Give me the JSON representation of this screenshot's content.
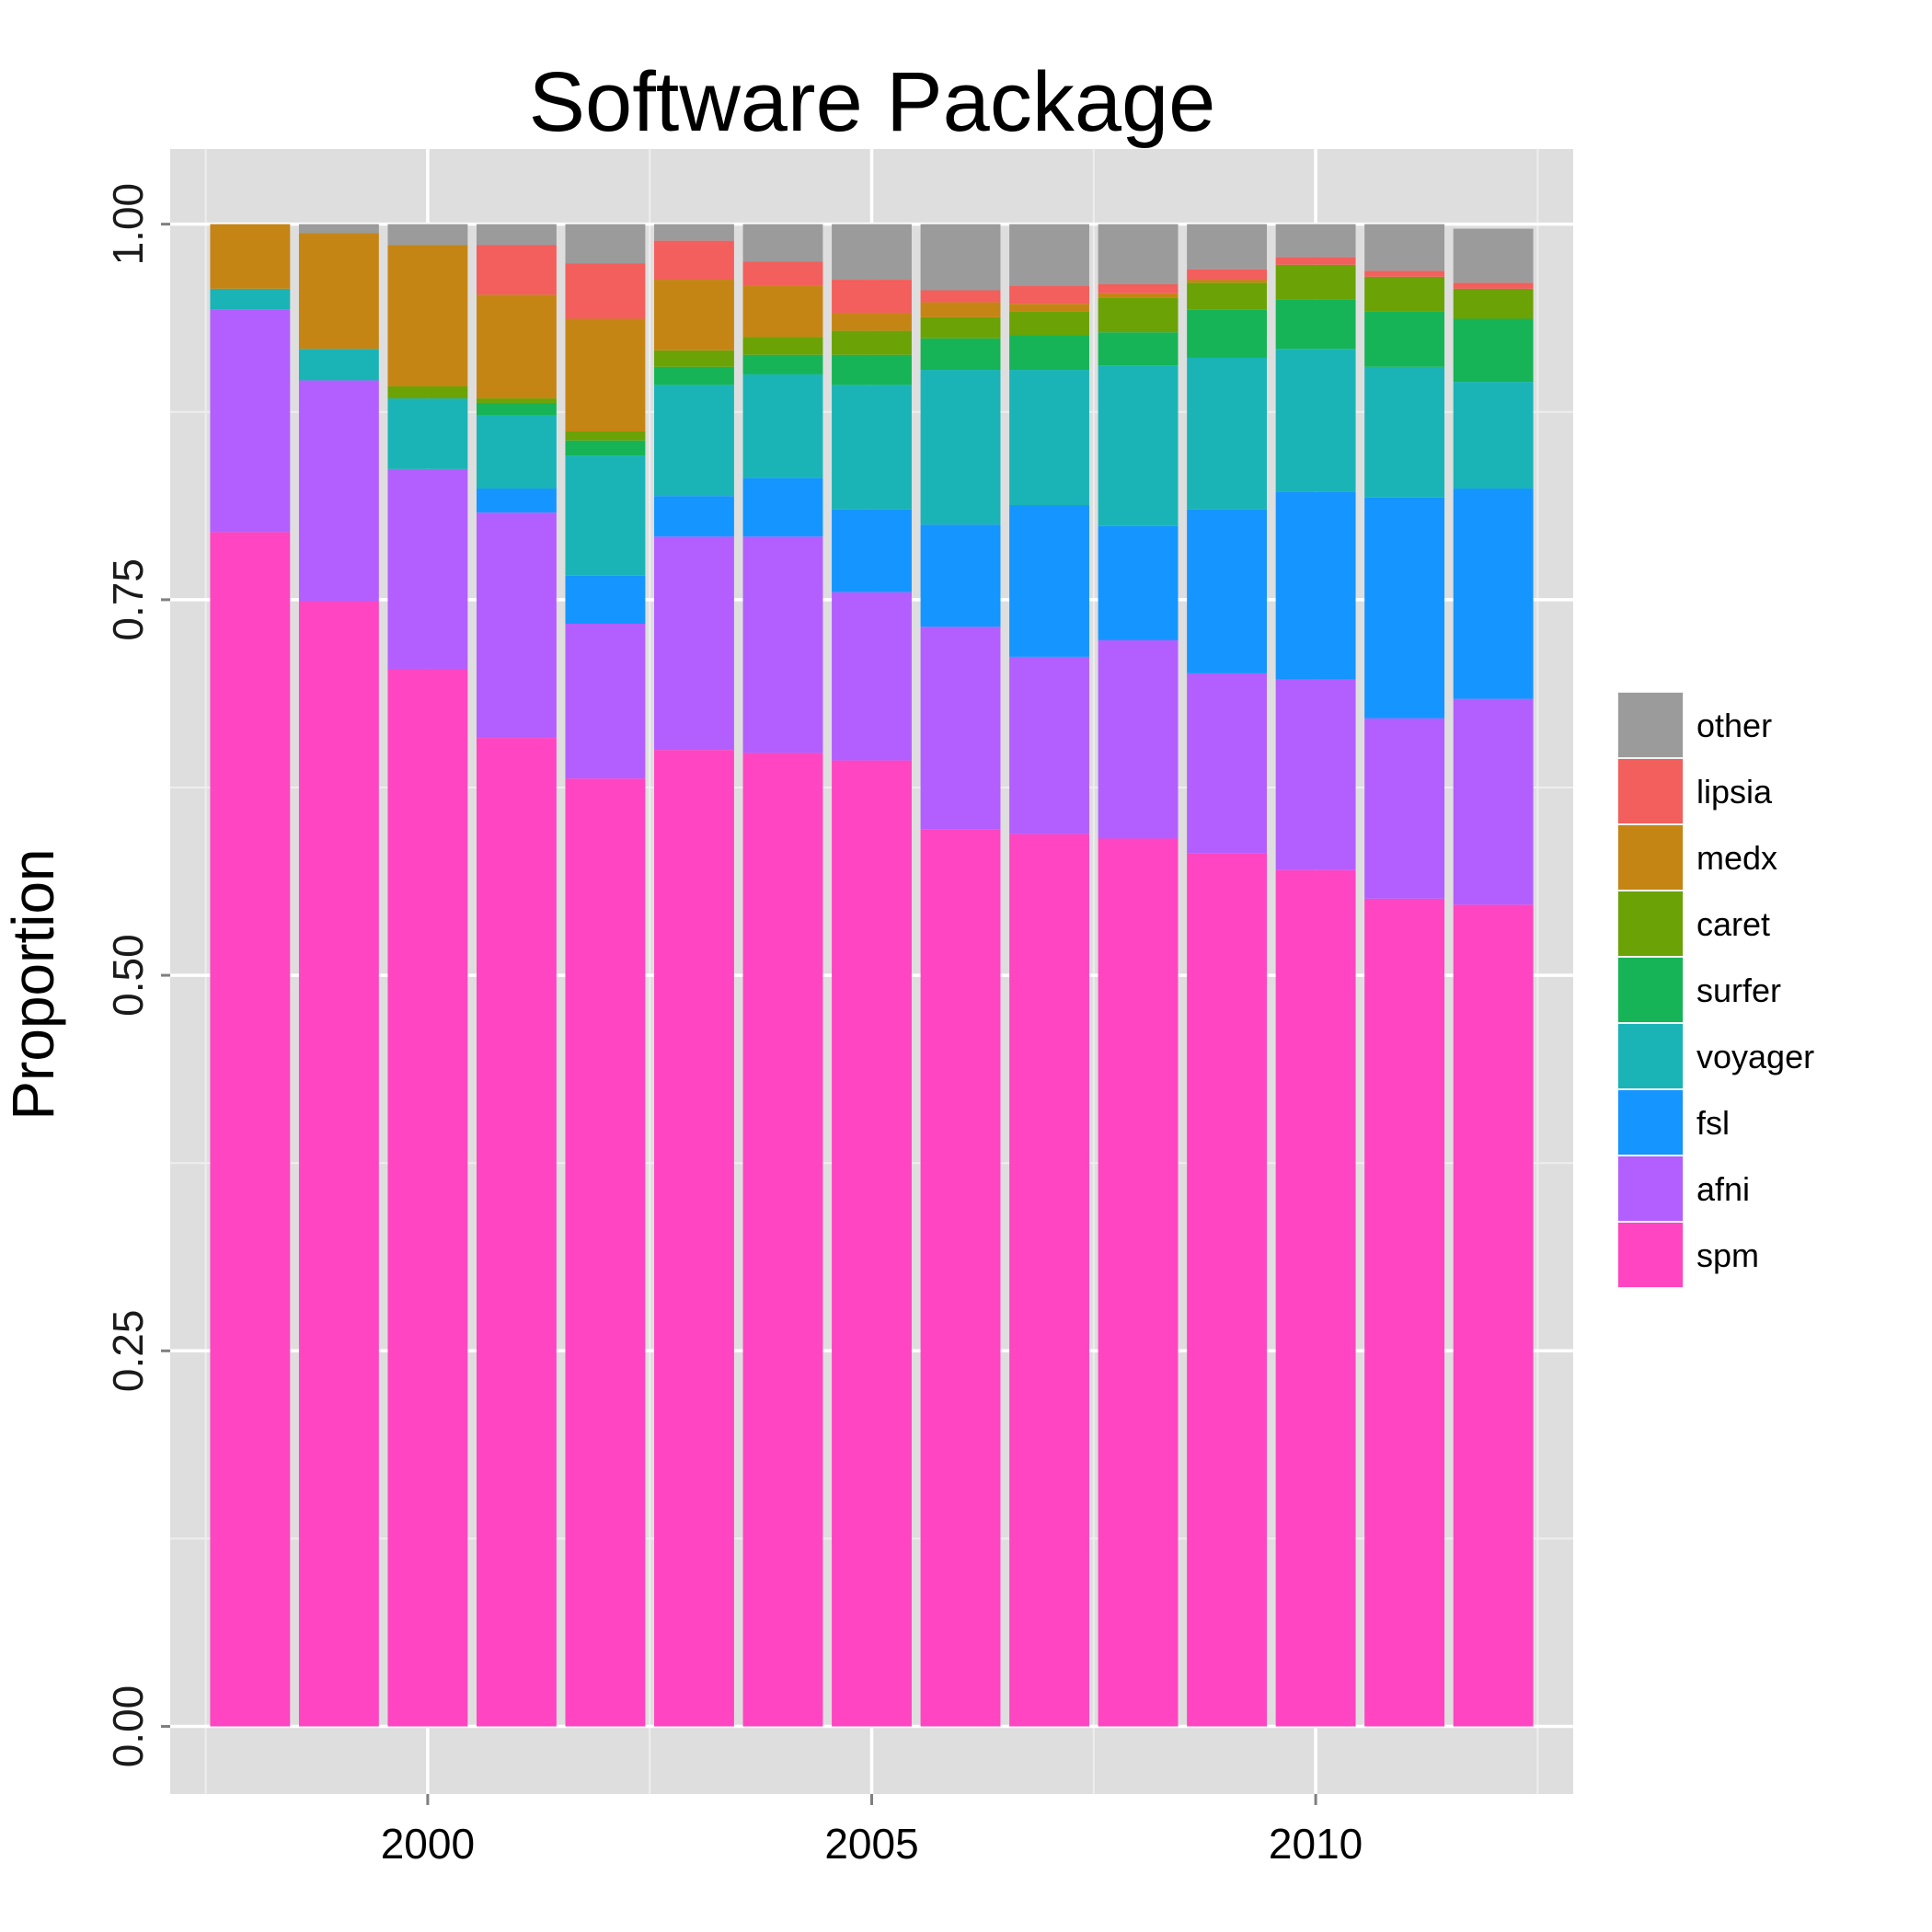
{
  "chart_data": {
    "type": "bar",
    "stacked": true,
    "title": "Software Package",
    "xlabel": "",
    "ylabel": "Proportion",
    "x": [
      1998,
      1999,
      2000,
      2001,
      2002,
      2003,
      2004,
      2005,
      2006,
      2007,
      2008,
      2009,
      2010,
      2011,
      2012
    ],
    "xlim": [
      1997.1,
      2012.9
    ],
    "ylim": [
      -0.045,
      1.05
    ],
    "x_ticks": [
      2000,
      2005,
      2010
    ],
    "x_tick_labels": [
      "2000",
      "2005",
      "2010"
    ],
    "y_ticks": [
      0,
      0.25,
      0.5,
      0.75,
      1
    ],
    "y_tick_labels": [
      "0.00",
      "0.25",
      "0.50",
      "0.75",
      "1.00"
    ],
    "grid": true,
    "legend_position": "right",
    "series": [
      {
        "name": "spm",
        "color": "#FF45C1",
        "values": [
          0.795,
          0.749,
          0.704,
          0.658,
          0.631,
          0.65,
          0.648,
          0.643,
          0.597,
          0.594,
          0.591,
          0.581,
          0.57,
          0.551,
          0.547
        ]
      },
      {
        "name": "afni",
        "color": "#B35FFF",
        "values": [
          0.148,
          0.147,
          0.133,
          0.15,
          0.103,
          0.142,
          0.144,
          0.112,
          0.135,
          0.118,
          0.132,
          0.12,
          0.127,
          0.12,
          0.137
        ]
      },
      {
        "name": "fsl",
        "color": "#1595FF",
        "values": [
          0.0,
          0.0,
          0.0,
          0.016,
          0.032,
          0.027,
          0.039,
          0.055,
          0.068,
          0.101,
          0.076,
          0.109,
          0.125,
          0.147,
          0.14
        ]
      },
      {
        "name": "voyager",
        "color": "#1AB4B6",
        "values": [
          0.014,
          0.021,
          0.047,
          0.049,
          0.08,
          0.074,
          0.069,
          0.083,
          0.103,
          0.09,
          0.107,
          0.101,
          0.095,
          0.087,
          0.071
        ]
      },
      {
        "name": "surfer",
        "color": "#16B456",
        "values": [
          0.0,
          0.0,
          0.0,
          0.008,
          0.01,
          0.012,
          0.013,
          0.02,
          0.021,
          0.023,
          0.022,
          0.032,
          0.033,
          0.037,
          0.042
        ]
      },
      {
        "name": "caret",
        "color": "#6BA206",
        "values": [
          0.0,
          0.0,
          0.008,
          0.003,
          0.006,
          0.011,
          0.012,
          0.016,
          0.014,
          0.016,
          0.023,
          0.018,
          0.023,
          0.023,
          0.02
        ]
      },
      {
        "name": "medx",
        "color": "#C58515",
        "values": [
          0.043,
          0.077,
          0.094,
          0.069,
          0.075,
          0.047,
          0.034,
          0.012,
          0.01,
          0.005,
          0.003,
          0.002,
          0.0,
          0.0,
          0.0
        ]
      },
      {
        "name": "lipsia",
        "color": "#F25F5C",
        "values": [
          0.0,
          0.0,
          0.0,
          0.033,
          0.037,
          0.026,
          0.016,
          0.022,
          0.008,
          0.012,
          0.006,
          0.007,
          0.005,
          0.004,
          0.004
        ]
      },
      {
        "name": "other",
        "color": "#9B9B9B",
        "values": [
          0.0,
          0.006,
          0.014,
          0.014,
          0.026,
          0.011,
          0.025,
          0.037,
          0.044,
          0.041,
          0.04,
          0.03,
          0.022,
          0.031,
          0.036
        ]
      }
    ]
  },
  "colors": {
    "panel_background": "#DEDEDE",
    "grid_major": "#FFFFFF",
    "grid_minor": "#EEEEEE"
  }
}
